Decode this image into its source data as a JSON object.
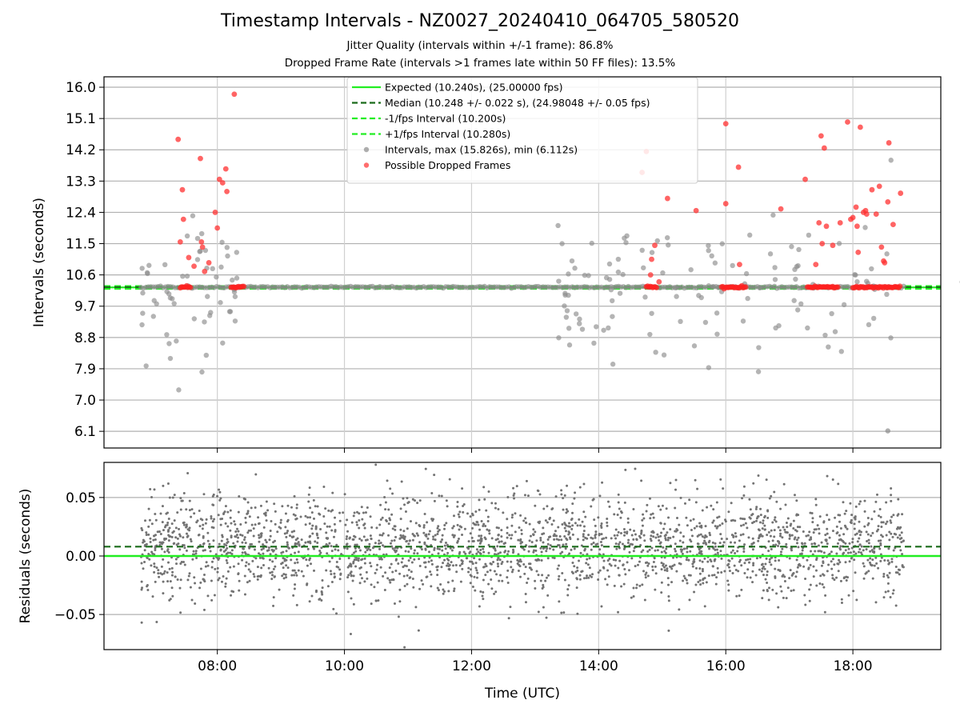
{
  "chart_data": [
    {
      "type": "scatter",
      "title": "Timestamp Intervals - NZ0027_20240410_064705_580520",
      "subtitles": [
        "Jitter Quality (intervals within +/-1 frame): 86.8%",
        "Dropped Frame Rate (intervals >1 frames late within 50 FF files): 13.5%"
      ],
      "xlabel": "Time (UTC)",
      "ylabel": "Intervals (seconds)",
      "xlim": [
        "06:13",
        "19:23"
      ],
      "ylim": [
        5.62,
        16.3
      ],
      "y_ticks": [
        "6.1",
        "7.0",
        "7.9",
        "8.8",
        "9.7",
        "10.6",
        "11.5",
        "12.4",
        "13.3",
        "14.2",
        "15.1",
        "16.0"
      ],
      "x_ticks": [
        "08:00",
        "10:00",
        "12:00",
        "14:00",
        "16:00",
        "18:00"
      ],
      "grid": true,
      "legend_position": "top-center",
      "reference_lines": {
        "expected": 10.24,
        "median": 10.248,
        "lower": 10.2,
        "upper": 10.28
      },
      "series": [
        {
          "name": "Expected (10.240s), (25.00000 fps)",
          "style": "line",
          "color": "#22ee22"
        },
        {
          "name": "Median (10.248 +/- 0.022 s), (24.98048 +/- 0.05 fps)",
          "style": "dashed",
          "color": "#1a6b1a"
        },
        {
          "name": "-1/fps Interval (10.200s)",
          "style": "dashed",
          "color": "#22ee22"
        },
        {
          "name": "+1/fps Interval (10.280s)",
          "style": "dashed",
          "color": "#22ee22"
        },
        {
          "name": "Intervals, max (15.826s), min (6.112s)",
          "style": "scatter",
          "color": "#8c8c8c",
          "x_range": [
            "06:48",
            "18:48"
          ],
          "max": 15.826,
          "min": 6.112
        },
        {
          "name": "Possible Dropped Frames",
          "style": "scatter",
          "color": "#ff3030",
          "points": [
            {
              "x": "07:23",
              "y": 14.5
            },
            {
              "x": "07:27",
              "y": 13.05
            },
            {
              "x": "07:28",
              "y": 12.2
            },
            {
              "x": "07:25",
              "y": 11.55
            },
            {
              "x": "07:33",
              "y": 11.1
            },
            {
              "x": "07:38",
              "y": 10.85
            },
            {
              "x": "07:45",
              "y": 11.55
            },
            {
              "x": "07:46",
              "y": 11.4
            },
            {
              "x": "07:48",
              "y": 10.7
            },
            {
              "x": "07:52",
              "y": 10.95
            },
            {
              "x": "07:44",
              "y": 13.95
            },
            {
              "x": "07:58",
              "y": 12.4
            },
            {
              "x": "08:00",
              "y": 11.95
            },
            {
              "x": "08:02",
              "y": 13.35
            },
            {
              "x": "08:05",
              "y": 13.25
            },
            {
              "x": "08:08",
              "y": 13.65
            },
            {
              "x": "08:09",
              "y": 13.0
            },
            {
              "x": "08:16",
              "y": 15.8
            },
            {
              "x": "14:41",
              "y": 13.55
            },
            {
              "x": "14:45",
              "y": 14.15
            },
            {
              "x": "14:49",
              "y": 10.6
            },
            {
              "x": "14:50",
              "y": 11.05
            },
            {
              "x": "14:53",
              "y": 11.45
            },
            {
              "x": "14:57",
              "y": 10.4
            },
            {
              "x": "15:05",
              "y": 12.8
            },
            {
              "x": "15:32",
              "y": 12.45
            },
            {
              "x": "16:00",
              "y": 14.95
            },
            {
              "x": "16:00",
              "y": 12.65
            },
            {
              "x": "16:12",
              "y": 13.7
            },
            {
              "x": "16:13",
              "y": 10.9
            },
            {
              "x": "16:52",
              "y": 12.5
            },
            {
              "x": "17:15",
              "y": 13.35
            },
            {
              "x": "17:25",
              "y": 10.9
            },
            {
              "x": "17:28",
              "y": 12.1
            },
            {
              "x": "17:30",
              "y": 14.6
            },
            {
              "x": "17:31",
              "y": 11.5
            },
            {
              "x": "17:33",
              "y": 14.25
            },
            {
              "x": "17:35",
              "y": 12.0
            },
            {
              "x": "17:41",
              "y": 11.45
            },
            {
              "x": "17:48",
              "y": 12.1
            },
            {
              "x": "17:55",
              "y": 15.0
            },
            {
              "x": "17:58",
              "y": 12.2
            },
            {
              "x": "18:00",
              "y": 12.25
            },
            {
              "x": "18:03",
              "y": 12.55
            },
            {
              "x": "18:04",
              "y": 12.0
            },
            {
              "x": "18:05",
              "y": 11.25
            },
            {
              "x": "18:07",
              "y": 14.85
            },
            {
              "x": "18:10",
              "y": 12.4
            },
            {
              "x": "18:12",
              "y": 12.45
            },
            {
              "x": "18:13",
              "y": 12.35
            },
            {
              "x": "18:18",
              "y": 13.05
            },
            {
              "x": "18:22",
              "y": 12.35
            },
            {
              "x": "18:25",
              "y": 13.15
            },
            {
              "x": "18:27",
              "y": 11.4
            },
            {
              "x": "18:29",
              "y": 11.0
            },
            {
              "x": "18:30",
              "y": 10.95
            },
            {
              "x": "18:33",
              "y": 12.7
            },
            {
              "x": "18:34",
              "y": 14.4
            },
            {
              "x": "18:38",
              "y": 12.05
            },
            {
              "x": "18:45",
              "y": 12.95
            }
          ]
        }
      ]
    },
    {
      "type": "scatter",
      "xlabel": "Time (UTC)",
      "ylabel": "Residuals (seconds)",
      "xlim": [
        "06:13",
        "19:23"
      ],
      "ylim": [
        -0.08,
        0.08
      ],
      "y_ticks": [
        "0.05",
        "0.00",
        "−0.05"
      ],
      "x_ticks": [
        "08:00",
        "10:00",
        "12:00",
        "14:00",
        "16:00",
        "18:00"
      ],
      "grid": true,
      "reference_lines": {
        "zero": 0.0,
        "median": 0.008
      },
      "series": [
        {
          "style": "scatter",
          "color": "#737373",
          "x_range": [
            "06:48",
            "18:48"
          ],
          "y_range": [
            -0.075,
            0.075
          ]
        }
      ]
    }
  ]
}
